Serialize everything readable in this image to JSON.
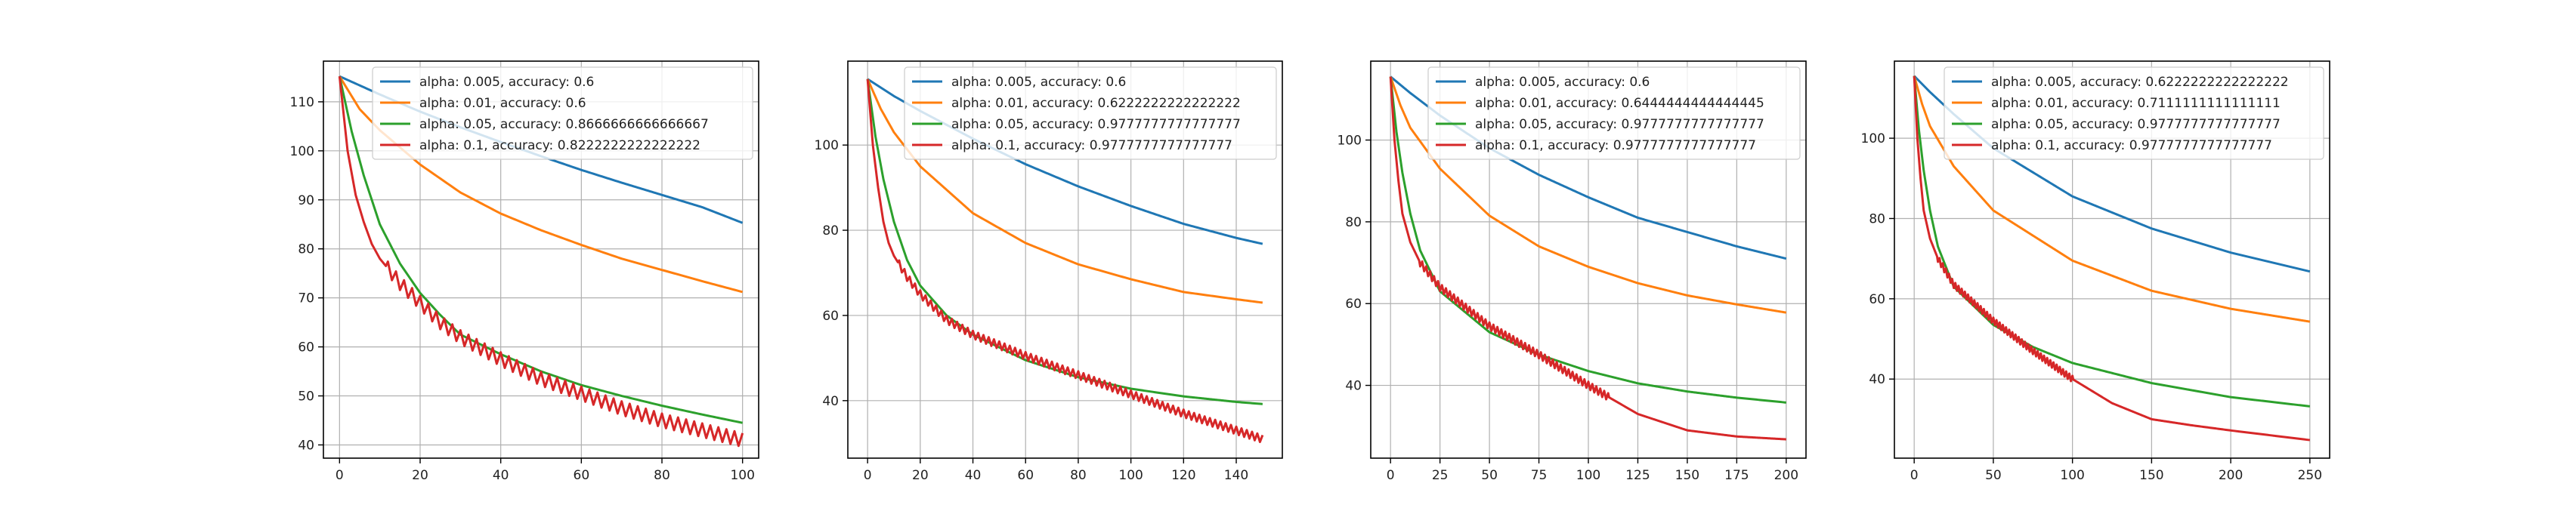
{
  "figure": {
    "title": ""
  },
  "chart_data": [
    {
      "type": "line",
      "title": "",
      "xlabel": "",
      "ylabel": "",
      "xlim": [
        -4,
        104
      ],
      "ylim": [
        37.3,
        118.3
      ],
      "xticks": [
        0,
        20,
        40,
        60,
        80,
        100
      ],
      "yticks": [
        40,
        50,
        60,
        70,
        80,
        90,
        100,
        110
      ],
      "grid": true,
      "legend_position": "top-right",
      "x_max": 100,
      "series": [
        {
          "name": "alpha: 0.005, accuracy: 0.6",
          "color": "#1f77b4",
          "points": [
            [
              0,
              115.2
            ],
            [
              10,
              111.5
            ],
            [
              20,
              108
            ],
            [
              30,
              104.8
            ],
            [
              40,
              101.8
            ],
            [
              50,
              98.9
            ],
            [
              60,
              96.1
            ],
            [
              70,
              93.5
            ],
            [
              80,
              91
            ],
            [
              90,
              88.5
            ],
            [
              100,
              85.3
            ]
          ]
        },
        {
          "name": "alpha: 0.01, accuracy: 0.6",
          "color": "#ff7f0e",
          "points": [
            [
              0,
              115.2
            ],
            [
              5,
              108.5
            ],
            [
              10,
              104.2
            ],
            [
              20,
              97.2
            ],
            [
              30,
              91.5
            ],
            [
              40,
              87.2
            ],
            [
              50,
              83.8
            ],
            [
              60,
              80.8
            ],
            [
              70,
              78
            ],
            [
              80,
              75.7
            ],
            [
              90,
              73.4
            ],
            [
              100,
              71.2
            ]
          ]
        },
        {
          "name": "alpha: 0.05, accuracy: 0.8666666666666667",
          "color": "#2ca02c",
          "points": [
            [
              0,
              115.2
            ],
            [
              3,
              104
            ],
            [
              6,
              95
            ],
            [
              10,
              85
            ],
            [
              15,
              77
            ],
            [
              20,
              71
            ],
            [
              25,
              66.5
            ],
            [
              30,
              62.5
            ],
            [
              40,
              58.5
            ],
            [
              50,
              55
            ],
            [
              60,
              52.2
            ],
            [
              70,
              50
            ],
            [
              80,
              48
            ],
            [
              90,
              46.2
            ],
            [
              100,
              44.5
            ]
          ]
        },
        {
          "name": "alpha: 0.1, accuracy: 0.8222222222222222",
          "color": "#d62728",
          "zigzag": 1.4,
          "zigzag_from": 12,
          "points": [
            [
              0,
              115.2
            ],
            [
              2,
              100
            ],
            [
              4,
              91
            ],
            [
              6,
              85.5
            ],
            [
              8,
              81
            ],
            [
              10,
              78
            ],
            [
              12,
              76
            ],
            [
              15,
              73
            ],
            [
              20,
              69
            ],
            [
              25,
              65
            ],
            [
              30,
              62
            ],
            [
              40,
              57.5
            ],
            [
              50,
              53.5
            ],
            [
              60,
              50.5
            ],
            [
              70,
              47.5
            ],
            [
              80,
              45
            ],
            [
              90,
              43
            ],
            [
              100,
              41
            ]
          ]
        }
      ]
    },
    {
      "type": "line",
      "title": "",
      "xlabel": "",
      "ylabel": "",
      "xlim": [
        -7.5,
        157.5
      ],
      "ylim": [
        26.5,
        119.7
      ],
      "xticks": [
        0,
        20,
        40,
        60,
        80,
        100,
        120,
        140
      ],
      "yticks": [
        40,
        60,
        80,
        100
      ],
      "grid": true,
      "legend_position": "top-right",
      "x_max": 150,
      "series": [
        {
          "name": "alpha: 0.005, accuracy: 0.6",
          "color": "#1f77b4",
          "points": [
            [
              0,
              115.5
            ],
            [
              10,
              111.5
            ],
            [
              20,
              108
            ],
            [
              40,
              101.5
            ],
            [
              60,
              95.5
            ],
            [
              80,
              90.3
            ],
            [
              100,
              85.7
            ],
            [
              120,
              81.5
            ],
            [
              140,
              78.2
            ],
            [
              150,
              76.8
            ]
          ]
        },
        {
          "name": "alpha: 0.01, accuracy: 0.6222222222222222",
          "color": "#ff7f0e",
          "points": [
            [
              0,
              115.5
            ],
            [
              5,
              108.5
            ],
            [
              10,
              103
            ],
            [
              20,
              95
            ],
            [
              40,
              84
            ],
            [
              60,
              77
            ],
            [
              80,
              72
            ],
            [
              100,
              68.5
            ],
            [
              120,
              65.5
            ],
            [
              140,
              63.8
            ],
            [
              150,
              63
            ]
          ]
        },
        {
          "name": "alpha: 0.05, accuracy: 0.9777777777777777",
          "color": "#2ca02c",
          "points": [
            [
              0,
              115.5
            ],
            [
              3,
              102
            ],
            [
              6,
              92
            ],
            [
              10,
              82
            ],
            [
              15,
              73
            ],
            [
              20,
              67
            ],
            [
              30,
              60
            ],
            [
              40,
              55.5
            ],
            [
              60,
              49.5
            ],
            [
              80,
              45.5
            ],
            [
              100,
              42.8
            ],
            [
              120,
              41
            ],
            [
              140,
              39.7
            ],
            [
              150,
              39.2
            ]
          ]
        },
        {
          "name": "alpha: 0.1, accuracy: 0.9777777777777777",
          "color": "#d62728",
          "zigzag": 0.9,
          "zigzag_from": 12,
          "points": [
            [
              0,
              115.5
            ],
            [
              2,
              100
            ],
            [
              4,
              90
            ],
            [
              6,
              82
            ],
            [
              8,
              77
            ],
            [
              10,
              74
            ],
            [
              15,
              69
            ],
            [
              20,
              65
            ],
            [
              30,
              59
            ],
            [
              40,
              55.5
            ],
            [
              60,
              50.5
            ],
            [
              80,
              46
            ],
            [
              100,
              41.5
            ],
            [
              120,
              37
            ],
            [
              140,
              33
            ],
            [
              150,
              31
            ]
          ]
        }
      ]
    },
    {
      "type": "line",
      "title": "",
      "xlabel": "",
      "ylabel": "",
      "xlim": [
        -10,
        210
      ],
      "ylim": [
        22.2,
        119.3
      ],
      "xticks": [
        0,
        25,
        50,
        75,
        100,
        125,
        150,
        175,
        200
      ],
      "yticks": [
        40,
        60,
        80,
        100
      ],
      "grid": true,
      "legend_position": "top-right",
      "x_max": 200,
      "series": [
        {
          "name": "alpha: 0.005, accuracy: 0.6",
          "color": "#1f77b4",
          "points": [
            [
              0,
              115.5
            ],
            [
              10,
              111.5
            ],
            [
              25,
              106
            ],
            [
              50,
              98
            ],
            [
              75,
              91.5
            ],
            [
              100,
              86
            ],
            [
              125,
              81
            ],
            [
              150,
              77.5
            ],
            [
              175,
              74
            ],
            [
              200,
              71
            ]
          ]
        },
        {
          "name": "alpha: 0.01, accuracy: 0.6444444444444445",
          "color": "#ff7f0e",
          "points": [
            [
              0,
              115.5
            ],
            [
              5,
              108.5
            ],
            [
              10,
              103
            ],
            [
              25,
              93
            ],
            [
              50,
              81.5
            ],
            [
              75,
              74
            ],
            [
              100,
              69
            ],
            [
              125,
              65
            ],
            [
              150,
              62
            ],
            [
              175,
              59.8
            ],
            [
              200,
              57.8
            ]
          ]
        },
        {
          "name": "alpha: 0.05, accuracy: 0.9777777777777777",
          "color": "#2ca02c",
          "points": [
            [
              0,
              115.5
            ],
            [
              3,
              102
            ],
            [
              6,
              92
            ],
            [
              10,
              82
            ],
            [
              15,
              73
            ],
            [
              25,
              63
            ],
            [
              50,
              53
            ],
            [
              75,
              47.5
            ],
            [
              100,
              43.5
            ],
            [
              125,
              40.5
            ],
            [
              150,
              38.5
            ],
            [
              175,
              37
            ],
            [
              200,
              35.8
            ]
          ]
        },
        {
          "name": "alpha: 0.1, accuracy: 0.9777777777777777",
          "color": "#d62728",
          "zigzag": 0.9,
          "zigzag_from": 15,
          "zigzag_to": 110,
          "points": [
            [
              0,
              115.5
            ],
            [
              2,
              100
            ],
            [
              4,
              90
            ],
            [
              6,
              82
            ],
            [
              10,
              75
            ],
            [
              15,
              70
            ],
            [
              25,
              64
            ],
            [
              50,
              54.5
            ],
            [
              75,
              47.5
            ],
            [
              100,
              40
            ],
            [
              125,
              33
            ],
            [
              150,
              29
            ],
            [
              175,
              27.5
            ],
            [
              200,
              26.8
            ]
          ]
        }
      ]
    },
    {
      "type": "line",
      "title": "",
      "xlabel": "",
      "ylabel": "",
      "xlim": [
        -12.5,
        262.5
      ],
      "ylim": [
        20.3,
        119.2
      ],
      "xticks": [
        0,
        50,
        100,
        150,
        200,
        250
      ],
      "yticks": [
        40,
        60,
        80,
        100
      ],
      "grid": true,
      "legend_position": "top-right",
      "x_max": 250,
      "series": [
        {
          "name": "alpha: 0.005, accuracy: 0.6222222222222222",
          "color": "#1f77b4",
          "points": [
            [
              0,
              115.5
            ],
            [
              10,
              111.5
            ],
            [
              25,
              106
            ],
            [
              50,
              97.5
            ],
            [
              100,
              85.5
            ],
            [
              150,
              77.5
            ],
            [
              200,
              71.5
            ],
            [
              250,
              66.8
            ]
          ]
        },
        {
          "name": "alpha: 0.01, accuracy: 0.7111111111111111",
          "color": "#ff7f0e",
          "points": [
            [
              0,
              115.5
            ],
            [
              5,
              108.5
            ],
            [
              10,
              103
            ],
            [
              25,
              93
            ],
            [
              50,
              82
            ],
            [
              100,
              69.5
            ],
            [
              150,
              62
            ],
            [
              200,
              57.5
            ],
            [
              250,
              54.3
            ]
          ]
        },
        {
          "name": "alpha: 0.05, accuracy: 0.9777777777777777",
          "color": "#2ca02c",
          "points": [
            [
              0,
              115.5
            ],
            [
              3,
              102
            ],
            [
              6,
              92
            ],
            [
              10,
              82
            ],
            [
              15,
              73
            ],
            [
              25,
              63
            ],
            [
              50,
              53.5
            ],
            [
              75,
              48
            ],
            [
              100,
              44
            ],
            [
              150,
              39
            ],
            [
              200,
              35.5
            ],
            [
              250,
              33.2
            ]
          ]
        },
        {
          "name": "alpha: 0.1, accuracy: 0.9777777777777777",
          "color": "#d62728",
          "zigzag": 0.8,
          "zigzag_from": 15,
          "zigzag_to": 100,
          "points": [
            [
              0,
              115.5
            ],
            [
              2,
              100
            ],
            [
              4,
              90
            ],
            [
              6,
              82
            ],
            [
              10,
              75
            ],
            [
              15,
              70
            ],
            [
              25,
              63.5
            ],
            [
              50,
              54.5
            ],
            [
              75,
              47
            ],
            [
              100,
              40
            ],
            [
              125,
              34
            ],
            [
              150,
              30
            ],
            [
              175,
              28.5
            ],
            [
              200,
              27.2
            ],
            [
              250,
              24.8
            ]
          ]
        }
      ]
    }
  ]
}
